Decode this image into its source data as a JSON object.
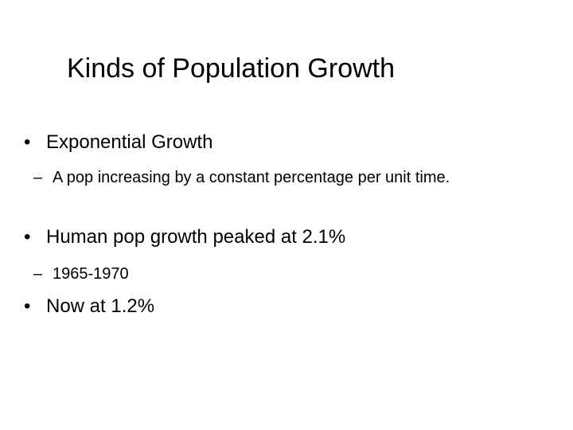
{
  "slide": {
    "title": "Kinds of Population Growth",
    "bullets": [
      {
        "symbol": "•",
        "text": "Exponential Growth",
        "sub": [
          {
            "symbol": "–",
            "text": "A pop increasing by a constant percentage per unit time."
          }
        ]
      },
      {
        "symbol": "•",
        "text": "Human pop growth peaked at 2.1%",
        "sub": [
          {
            "symbol": "–",
            "text": "1965-1970"
          }
        ]
      },
      {
        "symbol": "•",
        "text": "Now at 1.2%",
        "sub": []
      }
    ]
  }
}
